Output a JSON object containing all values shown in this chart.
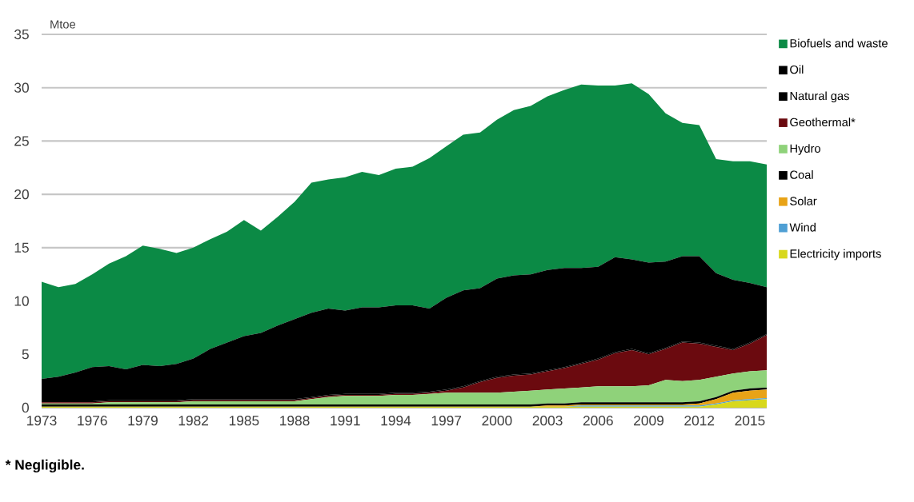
{
  "chart_data": {
    "type": "area",
    "stacked": true,
    "ylabel": "Mtoe",
    "x": [
      1973,
      1974,
      1975,
      1976,
      1977,
      1978,
      1979,
      1980,
      1981,
      1982,
      1983,
      1984,
      1985,
      1986,
      1987,
      1988,
      1989,
      1990,
      1991,
      1992,
      1993,
      1994,
      1995,
      1996,
      1997,
      1998,
      1999,
      2000,
      2001,
      2002,
      2003,
      2004,
      2005,
      2006,
      2007,
      2008,
      2009,
      2010,
      2011,
      2012,
      2013,
      2014,
      2015,
      2016
    ],
    "xlim": [
      1973,
      2016
    ],
    "xticks": [
      1973,
      1976,
      1979,
      1982,
      1985,
      1988,
      1991,
      1994,
      1997,
      2000,
      2003,
      2006,
      2009,
      2012,
      2015
    ],
    "ylim": [
      0,
      35
    ],
    "yticks": [
      0,
      5,
      10,
      15,
      20,
      25,
      30,
      35
    ],
    "grid": "y",
    "legend": "right",
    "series": [
      {
        "name": "Electricity imports",
        "color": "#d8d81c",
        "values": [
          0.1,
          0.1,
          0.1,
          0.1,
          0.1,
          0.1,
          0.1,
          0.1,
          0.1,
          0.1,
          0.1,
          0.1,
          0.1,
          0.1,
          0.1,
          0.1,
          0.1,
          0.1,
          0.1,
          0.1,
          0.1,
          0.1,
          0.1,
          0.1,
          0.1,
          0.1,
          0.1,
          0.1,
          0.1,
          0.1,
          0.1,
          0.1,
          0.1,
          0.1,
          0.1,
          0.1,
          0.1,
          0.1,
          0.1,
          0.1,
          0.3,
          0.6,
          0.7,
          0.8
        ]
      },
      {
        "name": "Wind",
        "color": "#4f9fd4",
        "values": [
          0,
          0,
          0,
          0,
          0,
          0,
          0,
          0,
          0,
          0,
          0,
          0,
          0,
          0,
          0,
          0,
          0,
          0,
          0,
          0,
          0,
          0,
          0,
          0,
          0,
          0,
          0,
          0,
          0,
          0,
          0,
          0,
          0.1,
          0.1,
          0.1,
          0.1,
          0.1,
          0.1,
          0.1,
          0.1,
          0.1,
          0.1,
          0.1,
          0.1
        ]
      },
      {
        "name": "Solar",
        "color": "#e8a317",
        "values": [
          0,
          0,
          0,
          0,
          0,
          0,
          0,
          0,
          0,
          0,
          0,
          0,
          0,
          0,
          0,
          0,
          0,
          0,
          0,
          0,
          0,
          0,
          0,
          0,
          0,
          0,
          0,
          0,
          0,
          0,
          0.1,
          0.1,
          0.1,
          0.1,
          0.1,
          0.1,
          0.1,
          0.1,
          0.1,
          0.2,
          0.4,
          0.7,
          0.8,
          0.8
        ]
      },
      {
        "name": "Coal",
        "color": "#000000",
        "values": [
          0.2,
          0.2,
          0.2,
          0.2,
          0.2,
          0.2,
          0.2,
          0.2,
          0.2,
          0.2,
          0.2,
          0.2,
          0.2,
          0.2,
          0.2,
          0.2,
          0.2,
          0.2,
          0.2,
          0.2,
          0.2,
          0.2,
          0.2,
          0.2,
          0.2,
          0.2,
          0.2,
          0.2,
          0.2,
          0.2,
          0.2,
          0.2,
          0.2,
          0.2,
          0.2,
          0.2,
          0.2,
          0.2,
          0.2,
          0.2,
          0.2,
          0.2,
          0.2,
          0.2
        ]
      },
      {
        "name": "Hydro",
        "color": "#8fd27a",
        "values": [
          0.1,
          0.1,
          0.1,
          0.1,
          0.2,
          0.2,
          0.2,
          0.2,
          0.2,
          0.3,
          0.3,
          0.3,
          0.3,
          0.3,
          0.3,
          0.3,
          0.5,
          0.7,
          0.8,
          0.8,
          0.8,
          0.9,
          0.9,
          1.0,
          1.1,
          1.1,
          1.1,
          1.1,
          1.2,
          1.3,
          1.3,
          1.4,
          1.4,
          1.5,
          1.5,
          1.5,
          1.6,
          2.1,
          2.0,
          2.0,
          1.9,
          1.6,
          1.6,
          1.6
        ]
      },
      {
        "name": "Geothermal*",
        "color": "#6b0a0f",
        "values": [
          0.1,
          0.1,
          0.1,
          0.1,
          0.1,
          0.1,
          0.1,
          0.1,
          0.1,
          0.1,
          0.1,
          0.1,
          0.1,
          0.1,
          0.1,
          0.1,
          0.1,
          0.1,
          0.1,
          0.1,
          0.1,
          0.1,
          0.1,
          0.1,
          0.2,
          0.5,
          1.0,
          1.4,
          1.5,
          1.5,
          1.7,
          1.9,
          2.2,
          2.5,
          3.1,
          3.4,
          2.9,
          2.9,
          3.6,
          3.4,
          2.8,
          2.2,
          2.6,
          3.3
        ]
      },
      {
        "name": "Natural gas",
        "color": "#000000",
        "values": [
          0.1,
          0.1,
          0.1,
          0.1,
          0.1,
          0.1,
          0.1,
          0.1,
          0.1,
          0.1,
          0.1,
          0.1,
          0.1,
          0.1,
          0.1,
          0.1,
          0.1,
          0.1,
          0.1,
          0.1,
          0.1,
          0.1,
          0.1,
          0.1,
          0.1,
          0.1,
          0.1,
          0.1,
          0.1,
          0.1,
          0.1,
          0.1,
          0.1,
          0.1,
          0.1,
          0.1,
          0.1,
          0.1,
          0.1,
          0.1,
          0.1,
          0.1,
          0.1,
          0.1
        ]
      },
      {
        "name": "Oil",
        "color": "#000000",
        "values": [
          2.1,
          2.3,
          2.7,
          3.2,
          3.2,
          2.9,
          3.3,
          3.2,
          3.4,
          3.8,
          4.7,
          5.3,
          5.9,
          6.2,
          6.9,
          7.5,
          7.9,
          8.1,
          7.8,
          8.1,
          8.1,
          8.2,
          8.2,
          7.8,
          8.6,
          9.0,
          8.7,
          9.2,
          9.3,
          9.3,
          9.4,
          9.3,
          8.9,
          8.6,
          8.9,
          8.4,
          8.5,
          8.1,
          8.0,
          8.1,
          6.8,
          6.5,
          5.6,
          4.4
        ]
      },
      {
        "name": "Biofuels and waste",
        "color": "#0b8a45",
        "values": [
          9.1,
          8.4,
          8.3,
          8.7,
          9.6,
          10.6,
          11.2,
          11.0,
          10.4,
          10.4,
          10.3,
          10.4,
          10.9,
          9.6,
          10.2,
          11.0,
          12.2,
          12.1,
          12.5,
          12.7,
          12.4,
          12.8,
          13.0,
          14.1,
          14.2,
          14.6,
          14.6,
          14.9,
          15.5,
          15.8,
          16.3,
          16.7,
          17.2,
          17.0,
          16.1,
          16.5,
          15.8,
          13.9,
          12.5,
          12.3,
          10.7,
          11.1,
          11.4,
          11.5
        ]
      }
    ],
    "annotations": [
      "* Negligible."
    ]
  }
}
